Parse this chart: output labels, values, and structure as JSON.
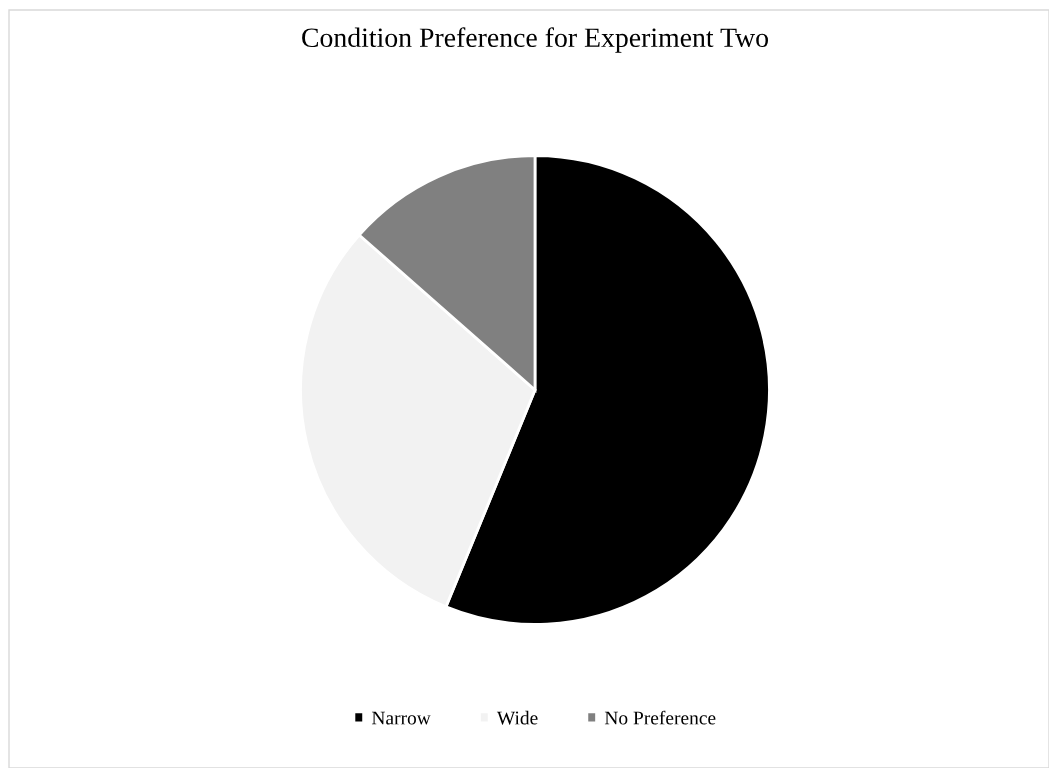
{
  "chart_data": {
    "type": "pie",
    "title": "Condition Preference for Experiment Two",
    "categories": [
      "Narrow",
      "Wide",
      "No Preference"
    ],
    "values": [
      56.2,
      30.3,
      13.5
    ],
    "colors": [
      "#000000",
      "#f2f2f2",
      "#808080"
    ],
    "legend": "bottom"
  }
}
